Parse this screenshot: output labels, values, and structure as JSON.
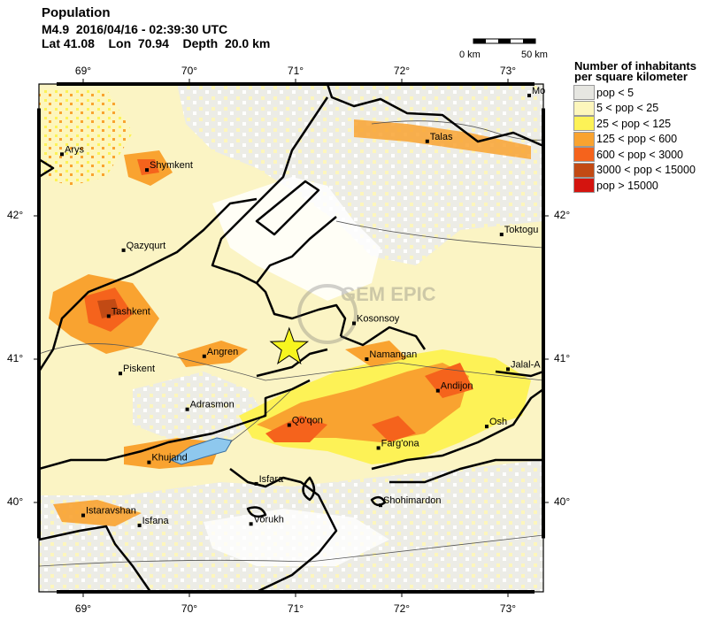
{
  "header": {
    "title": "Population",
    "line2": "M4.9  2016/04/16 - 02:39:30 UTC",
    "line3": "Lat 41.08    Lon  70.94    Depth  20.0 km"
  },
  "scale_bar": {
    "left_label": "0 km",
    "right_label": "50 km"
  },
  "axes": {
    "top_ticks": [
      "69°",
      "70°",
      "71°",
      "72°",
      "73°"
    ],
    "bottom_ticks": [
      "69°",
      "70°",
      "71°",
      "72°",
      "73°"
    ],
    "left_ticks": [
      "42°",
      "41°",
      "40°"
    ],
    "right_ticks": [
      "42°",
      "41°",
      "40°"
    ]
  },
  "legend": {
    "title_line1": "Number of inhabitants",
    "title_line2": "per square kilometer",
    "items": [
      {
        "label": "pop < 5",
        "color": "#e6e6e1"
      },
      {
        "label": "5 < pop < 25",
        "color": "#fdf6bc"
      },
      {
        "label": "25 < pop < 125",
        "color": "#fdf256"
      },
      {
        "label": "125 < pop < 600",
        "color": "#f9a330"
      },
      {
        "label": "600 < pop < 3000",
        "color": "#f5631c"
      },
      {
        "label": "3000 < pop < 15000",
        "color": "#c24a14"
      },
      {
        "label": "pop > 15000",
        "color": "#d4140f"
      }
    ]
  },
  "cities": [
    "Arys",
    "Shymkent",
    "Qazyqurt",
    "Tashkent",
    "Piskent",
    "Angren",
    "Adrasmon",
    "Khujand",
    "Istaravshan",
    "Isfana",
    "Isfara",
    "Vorukh",
    "Qo'qon",
    "Farg'ona",
    "Shohimardon",
    "Kosonsoy",
    "Namangan",
    "Andijon",
    "Osh",
    "Jalal-A",
    "Talas",
    "Toktogu",
    "Mo"
  ],
  "epicenter": {
    "lat": 41.08,
    "lon": 70.94,
    "marker": "star-icon",
    "color": "#f7f51f"
  },
  "watermark": "GEM EPIC",
  "colors": {
    "water": "#8ec8ee",
    "border": "#000000",
    "river": "#555555"
  }
}
